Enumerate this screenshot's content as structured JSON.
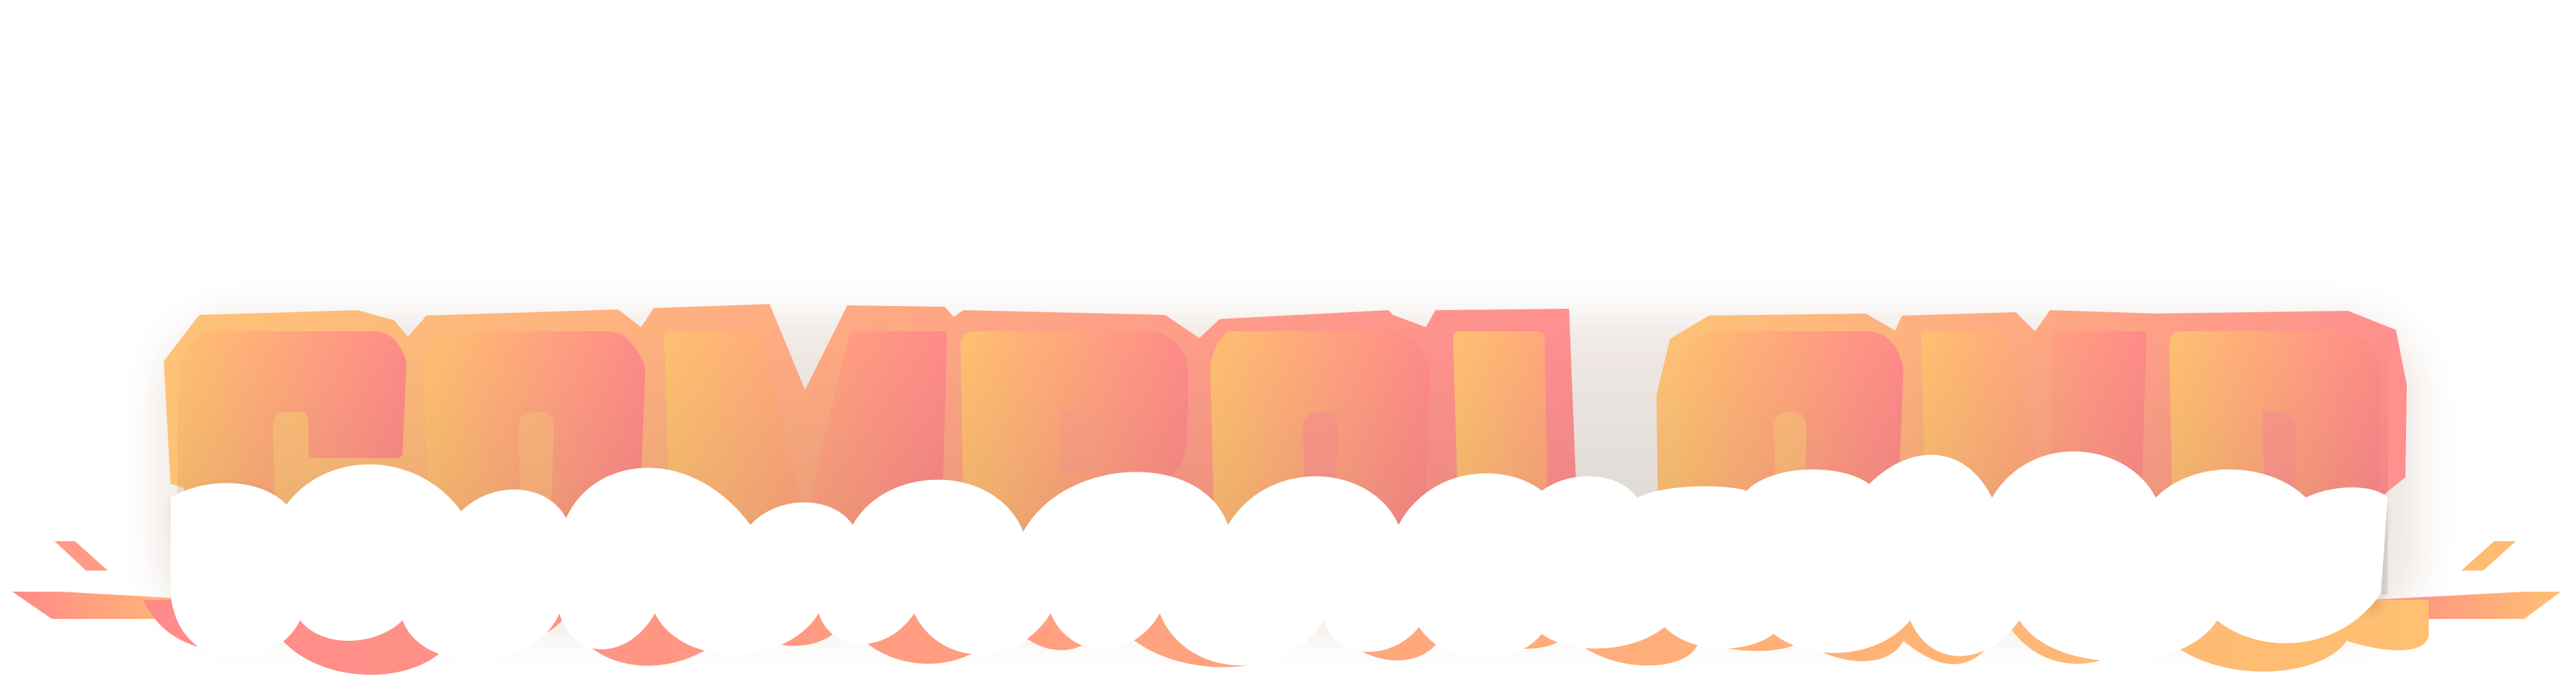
{
  "logo": {
    "text": "COMBOLAND",
    "letters": [
      "C",
      "O",
      "M",
      "B",
      "O",
      "L",
      "A",
      "N",
      "D"
    ],
    "colors": {
      "gradient_start": "#ffc071",
      "gradient_end": "#ff8a8a",
      "cloud": "#ffffff",
      "counter_shadow": "#d3956b"
    }
  }
}
